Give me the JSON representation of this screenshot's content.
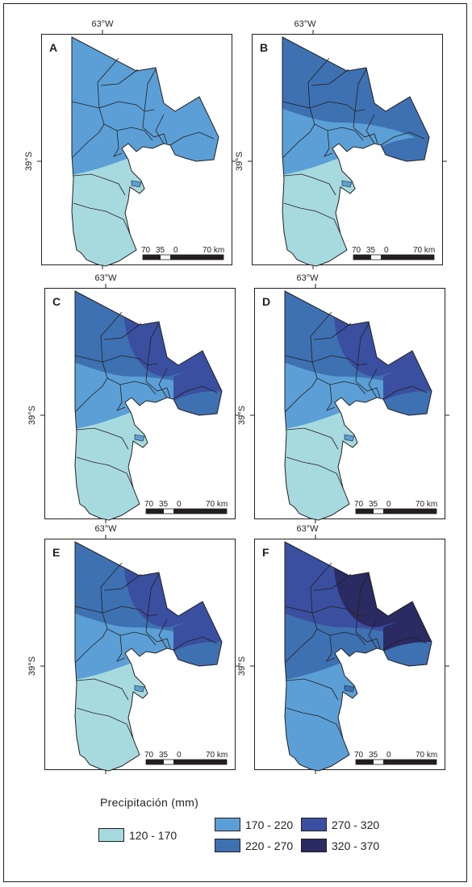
{
  "legend": {
    "title": "Precipitación (mm)",
    "classes": [
      {
        "label": "120 - 170",
        "color": "#a7dadf"
      },
      {
        "label": "170 - 220",
        "color": "#5b9fd6"
      },
      {
        "label": "220 - 270",
        "color": "#3e71b2"
      },
      {
        "label": "270 - 320",
        "color": "#3a4fa0"
      },
      {
        "label": "320 - 370",
        "color": "#2a2b62"
      }
    ]
  },
  "axis_labels": {
    "longitude": "63°W",
    "latitude": "39°S"
  },
  "scale_bar": {
    "ticks": [
      "70",
      "35",
      "0",
      "70 km"
    ]
  },
  "panels": [
    {
      "letter": "A",
      "classes": {
        "north": 1,
        "lower_band": 1,
        "south": 0,
        "east": 1
      }
    },
    {
      "letter": "B",
      "classes": {
        "north": 2,
        "lower_band": 1,
        "south": 0,
        "east": 2
      }
    },
    {
      "letter": "C",
      "classes": {
        "north": 2,
        "core": 3,
        "lower_band": 1,
        "south": 0,
        "east": 2,
        "east_top": 3
      }
    },
    {
      "letter": "D",
      "classes": {
        "north": 2,
        "core": 3,
        "lower_band": 1,
        "south": 0,
        "east": 2,
        "east_top": 3
      }
    },
    {
      "letter": "E",
      "classes": {
        "north": 2,
        "core": 3,
        "lower_band": 1,
        "south": 0,
        "east": 2,
        "east_top": 3
      }
    },
    {
      "letter": "F",
      "classes": {
        "north": 3,
        "core": 4,
        "lower_band": 2,
        "south": 1,
        "east": 2,
        "east_top": 4
      }
    }
  ]
}
